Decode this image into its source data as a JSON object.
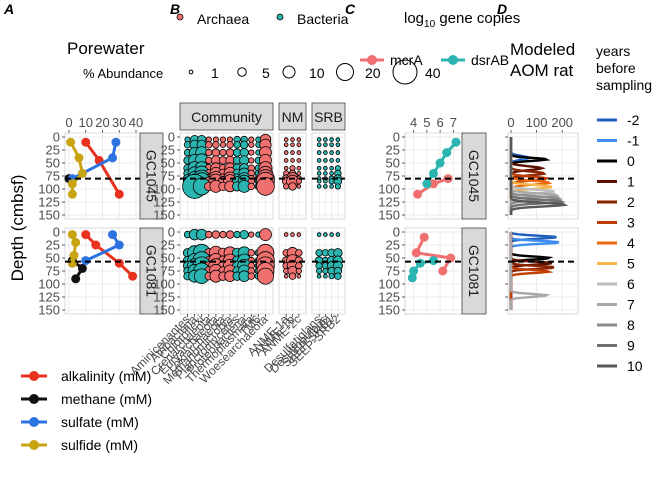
{
  "figure": {
    "panel_letters": [
      "A",
      "B",
      "C",
      "D"
    ],
    "depth_axis_label": "Depth (cmbsf)",
    "cores": [
      "GC1045",
      "GC1081"
    ]
  },
  "colors": {
    "alkalinity": "#e8321f",
    "methane": "#111111",
    "sulfate": "#2c72e0",
    "sulfide": "#c8a412",
    "archaea": "#f07070",
    "bacteria": "#2bb5b0",
    "strip_bg": "#d9d9d9",
    "grid": "#ebebeb"
  },
  "chart_data": [
    {
      "panel": "A",
      "type": "line",
      "title": "Porewater",
      "y_axis": "Depth (cmbsf)",
      "ylim": [
        150,
        0
      ],
      "yticks": [
        0,
        25,
        50,
        75,
        100,
        125,
        150
      ],
      "xlim": [
        0,
        40
      ],
      "xticks": [
        0,
        10,
        20,
        30,
        40
      ],
      "legend_position": "bottom-left",
      "series_names": [
        "alkalinity (mM)",
        "methane (mM)",
        "sulfate (mM)",
        "sulfide (mM)"
      ],
      "smtz_depth": {
        "GC1045": 80,
        "GC1081": 57
      },
      "facets": [
        {
          "core": "GC1045",
          "series": [
            {
              "key": "alkalinity",
              "points": [
                [
                  10,
                  10
                ],
                [
                  18,
                  45
                ],
                [
                  30,
                  110
                ]
              ]
            },
            {
              "key": "methane",
              "points": [
                [
                  0,
                  80
                ]
              ]
            },
            {
              "key": "sulfate",
              "points": [
                [
                  28,
                  10
                ],
                [
                  26,
                  40
                ],
                [
                  2,
                  80
                ]
              ]
            },
            {
              "key": "sulfide",
              "points": [
                [
                  1,
                  10
                ],
                [
                  6,
                  40
                ],
                [
                  8,
                  70
                ],
                [
                  2,
                  90
                ],
                [
                  2,
                  110
                ]
              ]
            }
          ]
        },
        {
          "core": "GC1081",
          "series": [
            {
              "key": "alkalinity",
              "points": [
                [
                  10,
                  5
                ],
                [
                  16,
                  25
                ],
                [
                  30,
                  60
                ],
                [
                  38,
                  85
                ]
              ]
            },
            {
              "key": "methane",
              "points": [
                [
                  2,
                  55
                ],
                [
                  8,
                  70
                ],
                [
                  4,
                  90
                ]
              ]
            },
            {
              "key": "sulfate",
              "points": [
                [
                  26,
                  5
                ],
                [
                  30,
                  25
                ],
                [
                  10,
                  55
                ]
              ]
            },
            {
              "key": "sulfide",
              "points": [
                [
                  2,
                  5
                ],
                [
                  4,
                  20
                ],
                [
                  3,
                  45
                ],
                [
                  2,
                  60
                ]
              ]
            }
          ]
        }
      ]
    },
    {
      "panel": "B",
      "type": "scatter",
      "title": "% Abundance",
      "legend_domain": [
        "Archaea",
        "Bacteria"
      ],
      "size_legend": [
        1,
        5,
        10,
        20,
        40
      ],
      "facet_columns": [
        "Community",
        "ANME",
        "SRB"
      ],
      "facet_column_labels": [
        "Community",
        "NM",
        "SRB"
      ],
      "community_taxa": [
        "Aminicenantes",
        "Atribacteria",
        "Chloroflexi",
        "Crenarchaeota",
        "Euryarchaeota",
        "Lokiarchaeota",
        "Methanomicrobia",
        "Planctomycetes",
        "Proteobacteria",
        "Thermoplasmata",
        "TM6",
        "Woesearchaeota"
      ],
      "anme_taxa": [
        "ANME-1a",
        "ANME-1b",
        "ANME-2c"
      ],
      "srb_taxa": [
        "Desulfatiglans",
        "Desulfobulbus",
        "SEEP-SRB1",
        "SEEP-SRB2"
      ],
      "sample_depths": [
        5,
        15,
        30,
        45,
        60,
        70,
        80,
        85,
        95
      ],
      "abundance": {
        "GC1045": {
          "Community": [
            [
              2,
              5,
              5,
              2,
              2,
              2,
              2,
              3,
              3,
              2,
              2,
              8
            ],
            [
              3,
              6,
              6,
              3,
              3,
              2,
              3,
              3,
              4,
              2,
              2,
              9
            ],
            [
              3,
              8,
              10,
              3,
              4,
              3,
              4,
              4,
              5,
              2,
              2,
              10
            ],
            [
              4,
              10,
              12,
              3,
              6,
              4,
              5,
              4,
              6,
              2,
              3,
              10
            ],
            [
              4,
              12,
              12,
              4,
              8,
              4,
              8,
              5,
              6,
              3,
              3,
              12
            ],
            [
              4,
              12,
              15,
              4,
              10,
              5,
              10,
              5,
              8,
              3,
              3,
              14
            ],
            [
              5,
              14,
              20,
              5,
              14,
              6,
              12,
              6,
              10,
              3,
              3,
              22
            ],
            [
              5,
              14,
              20,
              5,
              14,
              6,
              12,
              6,
              10,
              3,
              3,
              22
            ],
            [
              5,
              40,
              20,
              5,
              10,
              5,
              8,
              6,
              10,
              3,
              3,
              22
            ]
          ],
          "ANME": [
            [
              1,
              1,
              1
            ],
            [
              1,
              1,
              1
            ],
            [
              1,
              1,
              1
            ],
            [
              1,
              1,
              1
            ],
            [
              1,
              2,
              1
            ],
            [
              2,
              3,
              1
            ],
            [
              4,
              10,
              2
            ],
            [
              4,
              10,
              2
            ],
            [
              2,
              4,
              1
            ]
          ],
          "SRB": [
            [
              1,
              1,
              1,
              1
            ],
            [
              1,
              1,
              1,
              1
            ],
            [
              1,
              1,
              1,
              1
            ],
            [
              1,
              1,
              1,
              1
            ],
            [
              1,
              1,
              1,
              2
            ],
            [
              1,
              1,
              1,
              3
            ],
            [
              1,
              1,
              2,
              4
            ],
            [
              1,
              1,
              2,
              4
            ],
            [
              1,
              1,
              1,
              2
            ]
          ]
        },
        "GC1081": {
          "Community": [
            [
              3,
              8,
              8,
              3,
              4,
              3,
              4,
              3,
              5,
              2,
              2,
              10
            ],
            [
              5,
              14,
              20,
              5,
              12,
              6,
              10,
              6,
              10,
              3,
              3,
              20
            ],
            [
              5,
              14,
              22,
              5,
              14,
              6,
              12,
              6,
              12,
              3,
              3,
              22
            ],
            [
              5,
              14,
              22,
              5,
              14,
              6,
              12,
              6,
              12,
              3,
              3,
              22
            ],
            [
              4,
              12,
              18,
              5,
              12,
              5,
              10,
              5,
              10,
              3,
              3,
              20
            ],
            [
              4,
              10,
              15,
              4,
              10,
              5,
              8,
              5,
              8,
              3,
              3,
              18
            ]
          ],
          "ANME": [
            [
              1,
              1,
              1
            ],
            [
              3,
              8,
              3
            ],
            [
              4,
              10,
              4
            ],
            [
              3,
              8,
              3
            ],
            [
              2,
              6,
              2
            ],
            [
              1,
              3,
              1
            ]
          ],
          "SRB": [
            [
              1,
              1,
              1,
              1
            ],
            [
              3,
              3,
              4,
              5
            ],
            [
              4,
              3,
              5,
              6
            ],
            [
              3,
              3,
              5,
              6
            ],
            [
              2,
              2,
              4,
              4
            ],
            [
              1,
              1,
              2,
              3
            ]
          ]
        }
      },
      "sample_depths_gc1081": [
        5,
        40,
        55,
        65,
        75,
        85
      ]
    },
    {
      "panel": "C",
      "type": "line",
      "title": "log₁₀ gene copies",
      "title_base": "log",
      "title_subscript": "10",
      "title_rest": " gene copies",
      "xlim": [
        3.5,
        7.5
      ],
      "xticks": [
        4,
        5,
        6,
        7
      ],
      "ylim": [
        150,
        0
      ],
      "legend_position": "top",
      "series_names": [
        "mcrA",
        "dsrAB"
      ],
      "facets": [
        {
          "core": "GC1045",
          "series": [
            {
              "key": "mcrA",
              "points": [
                [
                  4.3,
                  110
                ],
                [
                  5.5,
                  90
                ],
                [
                  6.6,
                  80
                ]
              ]
            },
            {
              "key": "dsrAB",
              "points": [
                [
                  7.2,
                  10
                ],
                [
                  6.5,
                  30
                ],
                [
                  6.0,
                  50
                ],
                [
                  5.5,
                  70
                ],
                [
                  5.0,
                  90
                ]
              ]
            }
          ]
        },
        {
          "core": "GC1081",
          "series": [
            {
              "key": "mcrA",
              "points": [
                [
                  4.8,
                  10
                ],
                [
                  4.2,
                  40
                ],
                [
                  6.8,
                  50
                ],
                [
                  6.2,
                  75
                ]
              ]
            },
            {
              "key": "dsrAB",
              "points": [
                [
                  5.5,
                  55
                ],
                [
                  4.5,
                  60
                ],
                [
                  4.0,
                  75
                ],
                [
                  3.9,
                  88
                ]
              ]
            }
          ]
        }
      ]
    },
    {
      "panel": "D",
      "type": "line",
      "title": "Modeled AOM rat",
      "title_line1": "Modeled",
      "title_line2": "AOM rat",
      "xlim": [
        0,
        250
      ],
      "xticks": [
        0,
        100,
        200
      ],
      "legend_title": "years before sampling",
      "legend_title_lines": [
        "years",
        "before",
        "sampling"
      ],
      "legend_values": [
        "-2",
        "-1",
        "0",
        "1",
        "2",
        "3",
        "4",
        "5",
        "6",
        "7",
        "8",
        "9",
        "10"
      ],
      "legend_colors": [
        "#1f5fbf",
        "#3d8ef0",
        "#000000",
        "#5a1200",
        "#8a2300",
        "#c23e00",
        "#ea6a12",
        "#f7b64a",
        "#bdbdbd",
        "#a8a8a8",
        "#8c8c8c",
        "#707070",
        "#585858"
      ],
      "peaks": {
        "GC1045": [
          {
            "year": "-2",
            "depth": 40,
            "max": 70,
            "width": 5
          },
          {
            "year": "-1",
            "depth": 43,
            "max": 60,
            "width": 5
          },
          {
            "year": "0",
            "depth": 43,
            "max": 140,
            "width": 4
          },
          {
            "year": "1",
            "depth": 60,
            "max": 120,
            "width": 5
          },
          {
            "year": "2",
            "depth": 70,
            "max": 130,
            "width": 5
          },
          {
            "year": "3",
            "depth": 80,
            "max": 140,
            "width": 5
          },
          {
            "year": "4",
            "depth": 88,
            "max": 150,
            "width": 5
          },
          {
            "year": "5",
            "depth": 96,
            "max": 160,
            "width": 5
          },
          {
            "year": "6",
            "depth": 105,
            "max": 170,
            "width": 5
          },
          {
            "year": "7",
            "depth": 112,
            "max": 180,
            "width": 5
          },
          {
            "year": "8",
            "depth": 118,
            "max": 190,
            "width": 5
          },
          {
            "year": "9",
            "depth": 124,
            "max": 200,
            "width": 5
          },
          {
            "year": "10",
            "depth": 130,
            "max": 210,
            "width": 5
          }
        ],
        "GC1081": [
          {
            "year": "-2",
            "depth": 10,
            "max": 180,
            "width": 4
          },
          {
            "year": "-1",
            "depth": 20,
            "max": 190,
            "width": 4
          },
          {
            "year": "0",
            "depth": 50,
            "max": 150,
            "width": 4
          },
          {
            "year": "1",
            "depth": 60,
            "max": 160,
            "width": 4
          },
          {
            "year": "2",
            "depth": 68,
            "max": 170,
            "width": 4
          },
          {
            "year": "3",
            "depth": 76,
            "max": 150,
            "width": 4
          },
          {
            "year": "7",
            "depth": 122,
            "max": 140,
            "width": 4
          }
        ]
      },
      "smtz_depth": {
        "GC1045": 80,
        "GC1081": 57
      }
    }
  ]
}
